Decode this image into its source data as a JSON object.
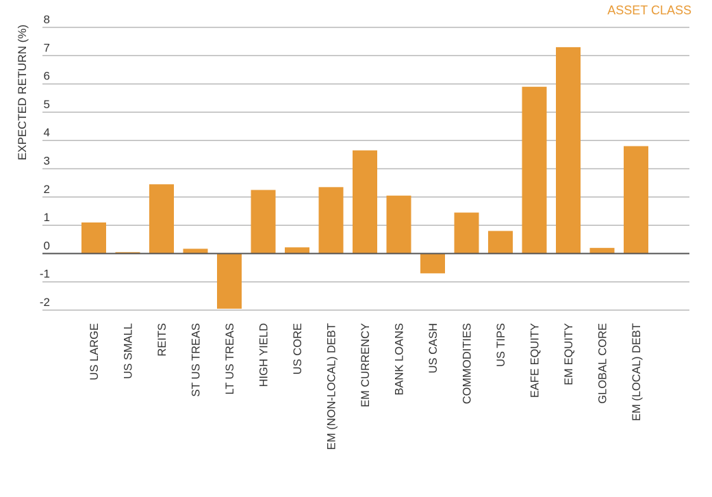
{
  "chart_data": {
    "type": "bar",
    "ylabel": "EXPECTED RETURN (%)",
    "legend": [
      "ASSET CLASS"
    ],
    "legend_position": "top-right",
    "grid": true,
    "ylim": [
      -2,
      8
    ],
    "yticks": [
      8,
      7,
      6,
      5,
      4,
      3,
      2,
      1,
      0,
      -1,
      -2
    ],
    "categories": [
      "US LARGE",
      "US SMALL",
      "REITS",
      "ST US TREAS",
      "LT US TREAS",
      "HIGH YIELD",
      "US CORE",
      "EM (NON-LOCAL) DEBT",
      "EM CURRENCY",
      "BANK LOANS",
      "US CASH",
      "COMMODITIES",
      "US TIPS",
      "EAFE EQUITY",
      "EM EQUITY",
      "GLOBAL CORE",
      "EM (LOCAL) DEBT"
    ],
    "values": [
      1.1,
      0.05,
      2.45,
      0.17,
      -1.95,
      2.25,
      0.22,
      2.35,
      3.65,
      2.05,
      -0.7,
      1.45,
      0.8,
      5.9,
      7.3,
      0.2,
      3.8
    ],
    "color": "#E89A36"
  }
}
